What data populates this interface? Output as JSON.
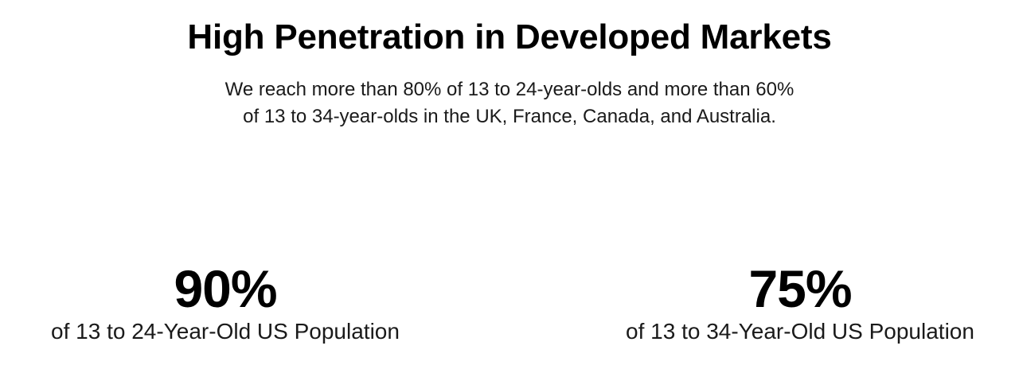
{
  "header": {
    "title": "High Penetration in Developed Markets",
    "subtitle_line1": "We reach more than 80% of 13 to 24-year-olds and more than 60%",
    "subtitle_line2": "of 13 to 34-year-olds in the UK, France, Canada, and Australia."
  },
  "stats": [
    {
      "value": "90%",
      "label": "of 13 to 24-Year-Old US Population"
    },
    {
      "value": "75%",
      "label": "of 13 to 34-Year-Old US Population"
    }
  ]
}
